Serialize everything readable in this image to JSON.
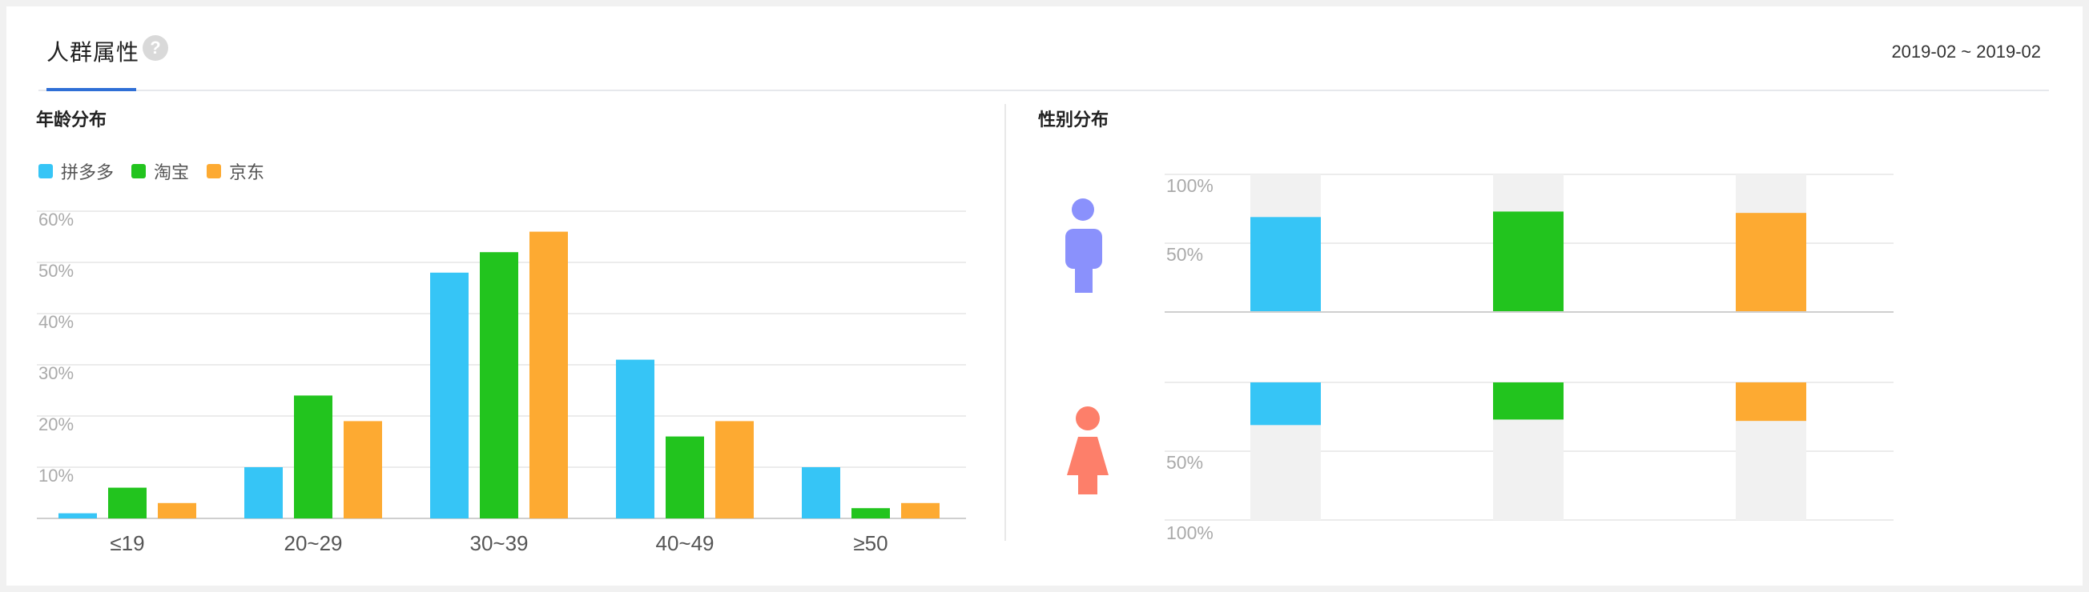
{
  "header": {
    "title": "人群属性",
    "help_glyph": "?",
    "date_range": "2019-02 ~ 2019-02"
  },
  "age_section": {
    "title": "年龄分布"
  },
  "gender_section": {
    "title": "性别分布"
  },
  "legend": [
    {
      "label": "拼多多",
      "color": "#36c5f6"
    },
    {
      "label": "淘宝",
      "color": "#22c41e"
    },
    {
      "label": "京东",
      "color": "#fdaa32"
    }
  ],
  "icons": {
    "male": "male-figure-icon",
    "female": "female-figure-icon",
    "help": "question-mark-icon"
  },
  "colors": {
    "male_icon": "#8a91fc",
    "female_icon": "#fd7f6a",
    "track": "#f1f1f1"
  },
  "chart_data": [
    {
      "type": "bar",
      "title": "年龄分布",
      "categories": [
        "≤19",
        "20~29",
        "30~39",
        "40~49",
        "≥50"
      ],
      "series": [
        {
          "name": "拼多多",
          "values": [
            1,
            10,
            48,
            31,
            10
          ]
        },
        {
          "name": "淘宝",
          "values": [
            6,
            24,
            52,
            16,
            2
          ]
        },
        {
          "name": "京东",
          "values": [
            3,
            19,
            56,
            19,
            3
          ]
        }
      ],
      "y_ticks": [
        "10%",
        "20%",
        "30%",
        "40%",
        "50%",
        "60%"
      ],
      "ylim": [
        0,
        60
      ],
      "grid": true,
      "legend_position": "top-left"
    },
    {
      "type": "bar",
      "title": "性别分布",
      "series_labels": [
        "拼多多",
        "淘宝",
        "京东"
      ],
      "male": {
        "values": [
          69,
          73,
          72
        ],
        "y_ticks": [
          "100%",
          "50%"
        ]
      },
      "female": {
        "values": [
          31,
          27,
          28
        ],
        "y_ticks": [
          "50%",
          "100%"
        ]
      },
      "ylim": [
        0,
        100
      ],
      "grid": true
    }
  ]
}
